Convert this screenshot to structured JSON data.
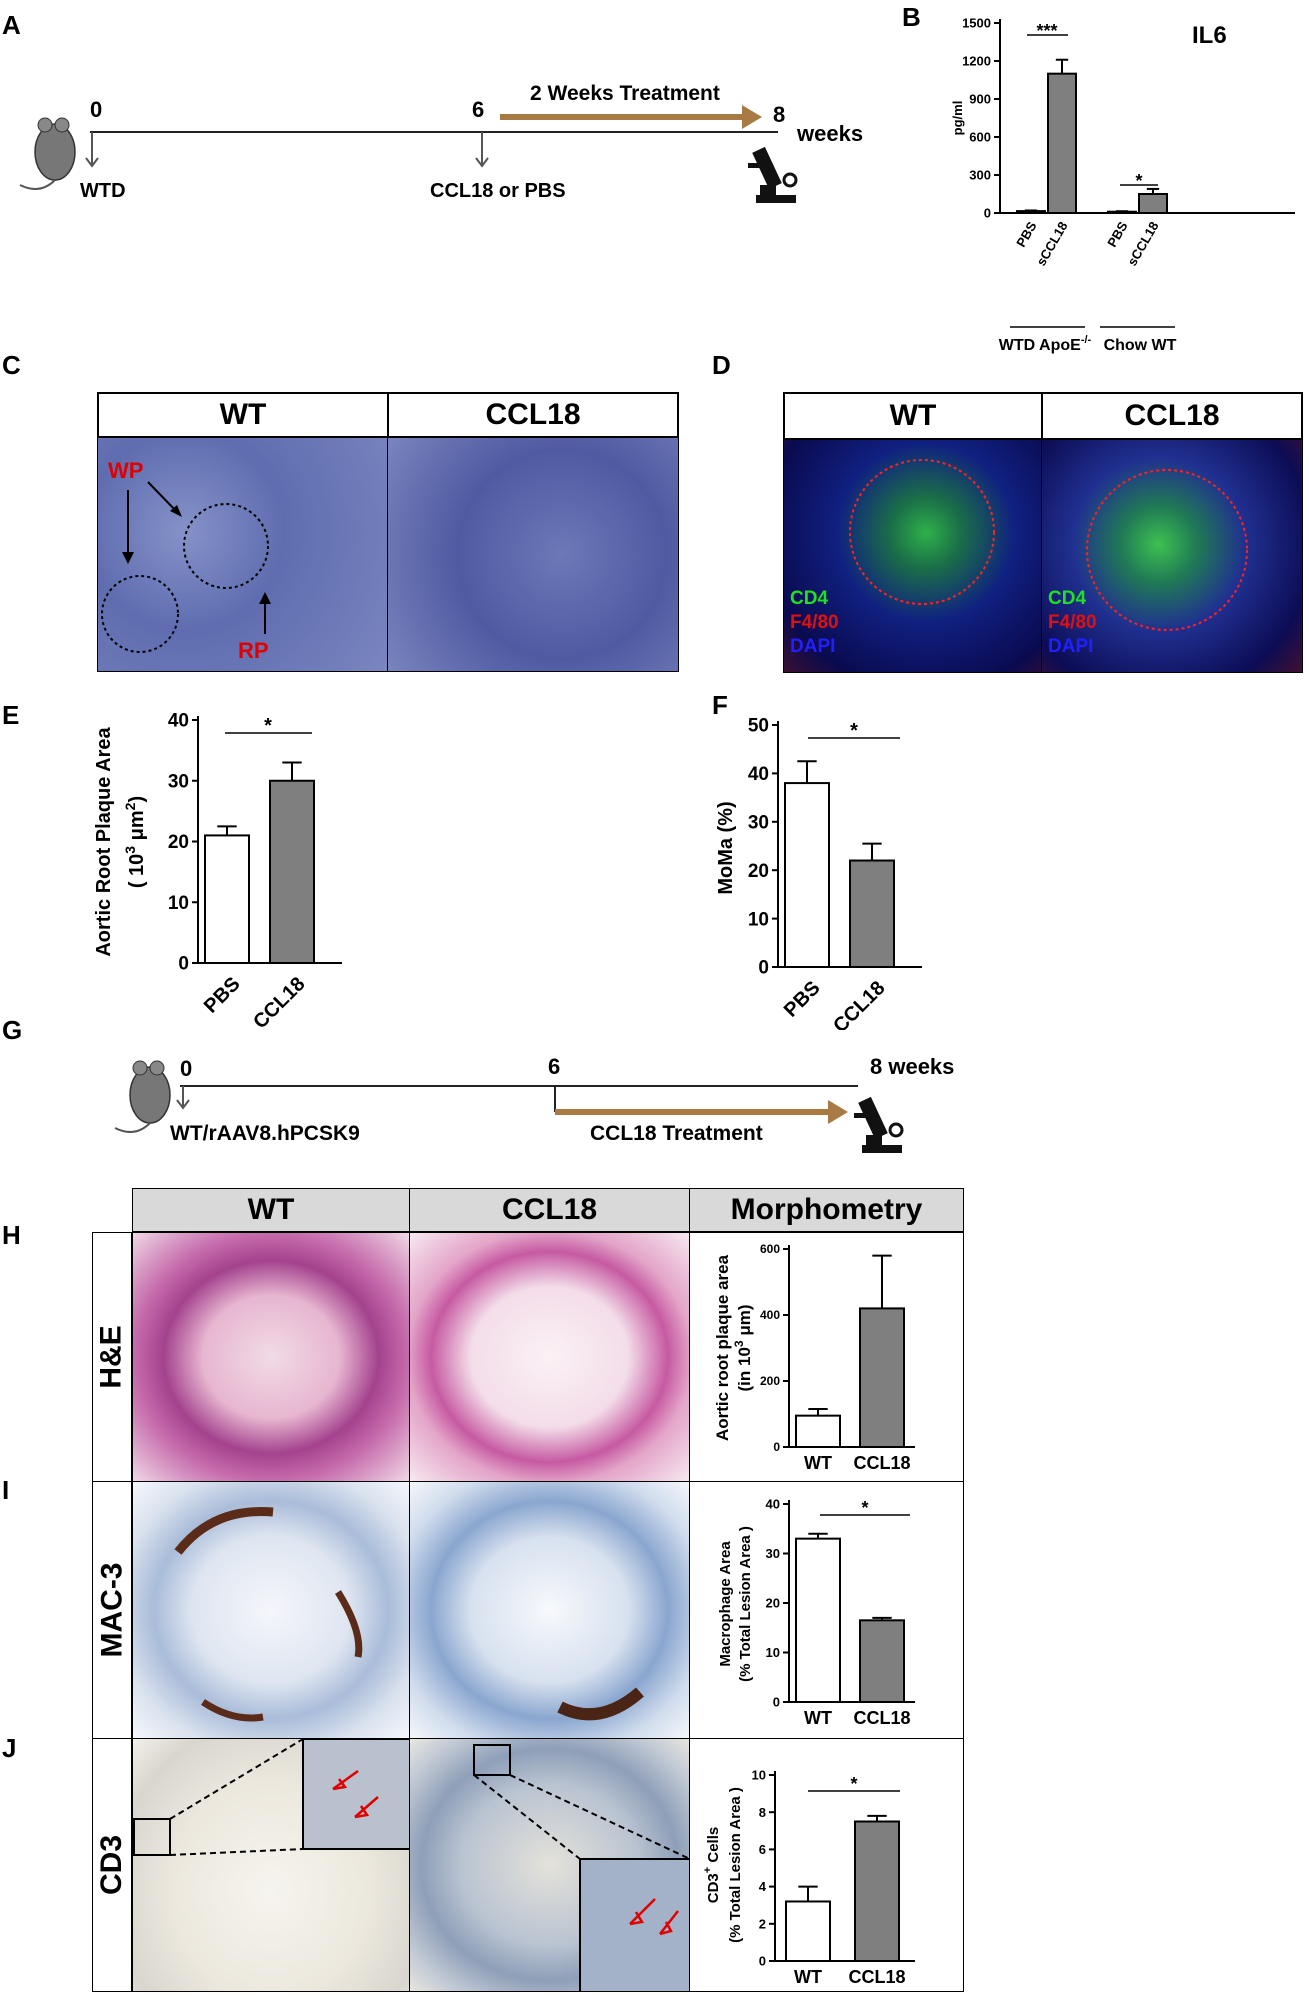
{
  "panels": {
    "A": "A",
    "B": "B",
    "C": "C",
    "D": "D",
    "E": "E",
    "F": "F",
    "G": "G",
    "H": "H",
    "I": "I",
    "J": "J"
  },
  "timelineA": {
    "t0": "0",
    "t6": "6",
    "t8": "8",
    "weeks": "weeks",
    "treatment": "2 Weeks Treatment",
    "start": "WTD",
    "injection": "CCL18 or PBS"
  },
  "timelineG": {
    "t0": "0",
    "t6": "6",
    "end": "8 weeks",
    "start": "WT/rAAV8.hPCSK9",
    "treatment": "CCL18 Treatment"
  },
  "panelC": {
    "col1": "WT",
    "col2": "CCL18",
    "wp": "WP",
    "rp": "RP"
  },
  "panelD": {
    "col1": "WT",
    "col2": "CCL18",
    "cd4": "CD4",
    "f480": "F4/80",
    "dapi": "DAPI"
  },
  "panelHJ": {
    "col1": "WT",
    "col2": "CCL18",
    "col3": "Morphometry",
    "row1": "H&E",
    "row2": "MAC-3",
    "row3": "CD3"
  },
  "colors": {
    "white_bar": "#ffffff",
    "grey_bar": "#7f7f7f",
    "arrow": "#a87b45",
    "red": "#e00000"
  },
  "chart_data": [
    {
      "id": "B",
      "type": "bar",
      "title": "IL6",
      "ylabel": "pg/ml",
      "ylim": [
        0,
        1500
      ],
      "yticks": [
        "0",
        "300",
        "600",
        "900",
        "1200",
        "1500"
      ],
      "categories": [
        "PBS",
        "sCCL18",
        "PBS",
        "sCCL18"
      ],
      "values": [
        15,
        1100,
        10,
        150
      ],
      "errors": [
        5,
        110,
        4,
        40
      ],
      "groups": [
        "WTD ApoE",
        "Chow WT"
      ],
      "group_sup": "-/-",
      "sig": [
        "***",
        "*"
      ]
    },
    {
      "id": "E",
      "type": "bar",
      "ylabel": "Aortic Root Plaque Area",
      "ylabel2": "( 10",
      "ylabel_sup": "3",
      "ylabel_mid": " μm",
      "ylabel_sup2": "2",
      "ylabel_end": ")",
      "ylim": [
        0,
        40
      ],
      "yticks": [
        "0",
        "10",
        "20",
        "30",
        "40"
      ],
      "categories": [
        "PBS",
        "CCL18"
      ],
      "values": [
        21,
        30
      ],
      "errors": [
        1.5,
        3
      ],
      "sig": "*"
    },
    {
      "id": "F",
      "type": "bar",
      "ylabel": "MoMa (%)",
      "ylim": [
        0,
        50
      ],
      "yticks": [
        "0",
        "10",
        "20",
        "30",
        "40",
        "50"
      ],
      "categories": [
        "PBS",
        "CCL18"
      ],
      "values": [
        38,
        22
      ],
      "errors": [
        4.5,
        3.5
      ],
      "sig": "*"
    },
    {
      "id": "H",
      "type": "bar",
      "ylabel": "Aortic root plaque area",
      "ylabel2": "(in 10",
      "ylabel_sup": "3",
      "ylabel_end": " μm)",
      "ylim": [
        0,
        600
      ],
      "yticks": [
        "0",
        "200",
        "400",
        "600"
      ],
      "categories": [
        "WT",
        "CCL18"
      ],
      "values": [
        95,
        420
      ],
      "errors": [
        20,
        160
      ]
    },
    {
      "id": "I",
      "type": "bar",
      "ylabel": "Macrophage Area",
      "ylabel2": "(% Total Lesion Area )",
      "ylim": [
        0,
        40
      ],
      "yticks": [
        "0",
        "10",
        "20",
        "30",
        "40"
      ],
      "categories": [
        "WT",
        "CCL18"
      ],
      "values": [
        33,
        16.5
      ],
      "errors": [
        1,
        0.5
      ],
      "sig": "*"
    },
    {
      "id": "J",
      "type": "bar",
      "ylabel": "CD3",
      "ylabel_sup": "+",
      "ylabel_end": " Cells",
      "ylabel2": "(% Total Lesion Area )",
      "ylim": [
        0,
        10
      ],
      "yticks": [
        "0",
        "2",
        "4",
        "6",
        "8",
        "10"
      ],
      "categories": [
        "WT",
        "CCL18"
      ],
      "values": [
        3.2,
        7.5
      ],
      "errors": [
        0.8,
        0.3
      ],
      "sig": "*"
    }
  ]
}
